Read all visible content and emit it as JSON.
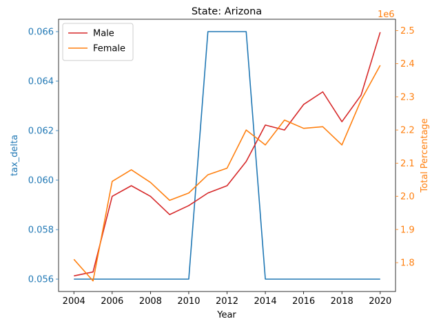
{
  "chart_data": {
    "type": "line",
    "title": "State: Arizona",
    "xlabel": "Year",
    "ylabel_left": "tax_delta",
    "ylabel_right": "Total Percentage",
    "right_axis_offset_text": "1e6",
    "x": [
      2004,
      2005,
      2006,
      2007,
      2008,
      2009,
      2010,
      2011,
      2012,
      2013,
      2014,
      2015,
      2016,
      2017,
      2018,
      2019,
      2020
    ],
    "x_ticks": [
      2004,
      2006,
      2008,
      2010,
      2012,
      2014,
      2016,
      2018,
      2020
    ],
    "x_tick_labels": [
      "2004",
      "2006",
      "2008",
      "2010",
      "2012",
      "2014",
      "2016",
      "2018",
      "2020"
    ],
    "xlim": [
      2003.2,
      2020.8
    ],
    "left_axis": {
      "ylim": [
        0.0555,
        0.0665
      ],
      "ticks": [
        0.056,
        0.058,
        0.06,
        0.062,
        0.064,
        0.066
      ],
      "tick_labels": [
        "0.056",
        "0.058",
        "0.060",
        "0.062",
        "0.064",
        "0.066"
      ],
      "color": "#1f77b4"
    },
    "right_axis": {
      "ylim": [
        1.713,
        2.534
      ],
      "ticks": [
        1.8,
        1.9,
        2.0,
        2.1,
        2.2,
        2.3,
        2.4,
        2.5
      ],
      "tick_labels": [
        "1.8",
        "1.9",
        "2.0",
        "2.1",
        "2.2",
        "2.3",
        "2.4",
        "2.5"
      ],
      "color": "#ff7f0e"
    },
    "series": [
      {
        "axis": "left",
        "color": "#1f77b4",
        "values": [
          0.056,
          0.056,
          0.056,
          0.056,
          0.056,
          0.056,
          0.056,
          0.066,
          0.066,
          0.066,
          0.056,
          0.056,
          0.056,
          0.056,
          0.056,
          0.056,
          0.056
        ]
      },
      {
        "name": "Male",
        "axis": "right",
        "color": "#d62728",
        "values": [
          1.76,
          1.772,
          2.0,
          2.032,
          2.0,
          1.945,
          1.972,
          2.01,
          2.032,
          2.105,
          2.215,
          2.2,
          2.277,
          2.315,
          2.225,
          2.305,
          2.495
        ]
      },
      {
        "name": "Female",
        "axis": "right",
        "color": "#ff7f0e",
        "values": [
          1.81,
          1.745,
          2.045,
          2.08,
          2.042,
          1.988,
          2.01,
          2.065,
          2.085,
          2.2,
          2.155,
          2.23,
          2.205,
          2.21,
          2.155,
          2.29,
          2.395
        ]
      }
    ],
    "legend": {
      "position": "upper-left",
      "entries": [
        "Male",
        "Female"
      ]
    },
    "grid": false
  }
}
